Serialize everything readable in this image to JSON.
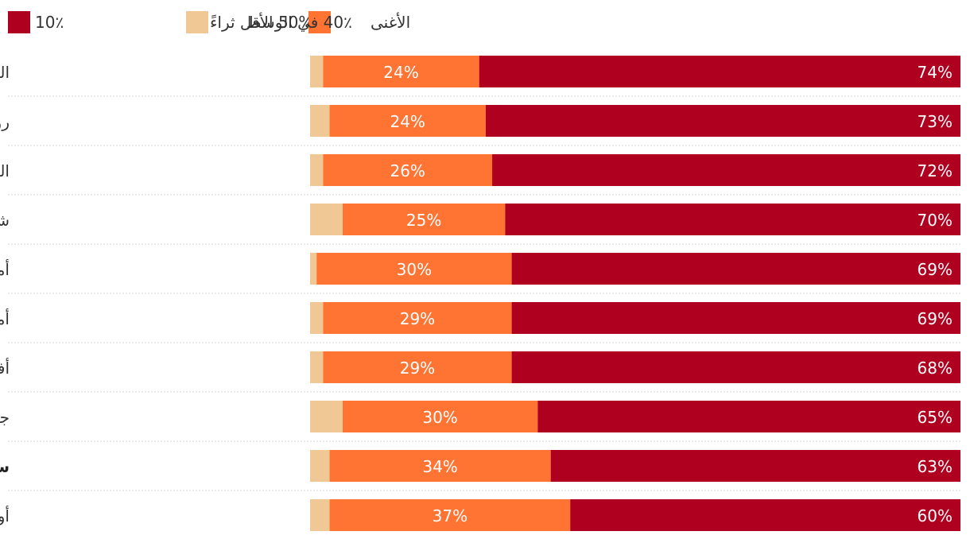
{
  "legend": {
    "bottom50": "50% الأقل ثراءً",
    "middle40": "40٪ في الوسط",
    "top10": "10٪ الأغنى"
  },
  "colors": {
    "bottom50": "#F0C896",
    "middle40": "#FF7433",
    "top10": "#B0001F",
    "separator": "#d8d8d8"
  },
  "chart_data": {
    "type": "bar",
    "orientation": "horizontal",
    "stacked": true,
    "xlim": [
      0,
      100
    ],
    "categories": [
      "العالم",
      "روسيا وآسيا الوسطى",
      "الشرق الأوسط وشمال أفريقيا (MENA)",
      "شرق آسيا",
      "أمريكا الشمالية",
      "أمريكا اللاتينية",
      "أفريقيا جنوب الصحراء الكبرى",
      "جنوب وجنوب شرق آسيا",
      "سويسرا",
      "أوروبا"
    ],
    "highlight": "سويسرا",
    "series": [
      {
        "name": "50% الأقل ثراءً",
        "key": "bottom50",
        "values": [
          2,
          3,
          2,
          5,
          1,
          2,
          2,
          5,
          3,
          3
        ],
        "labeled": false
      },
      {
        "name": "40٪ في الوسط",
        "key": "middle40",
        "values": [
          24,
          24,
          26,
          25,
          30,
          29,
          29,
          30,
          34,
          37
        ],
        "labeled": true
      },
      {
        "name": "10٪ الأغنى",
        "key": "top10",
        "values": [
          74,
          73,
          72,
          70,
          69,
          69,
          68,
          65,
          63,
          60
        ],
        "labeled": true
      }
    ]
  }
}
